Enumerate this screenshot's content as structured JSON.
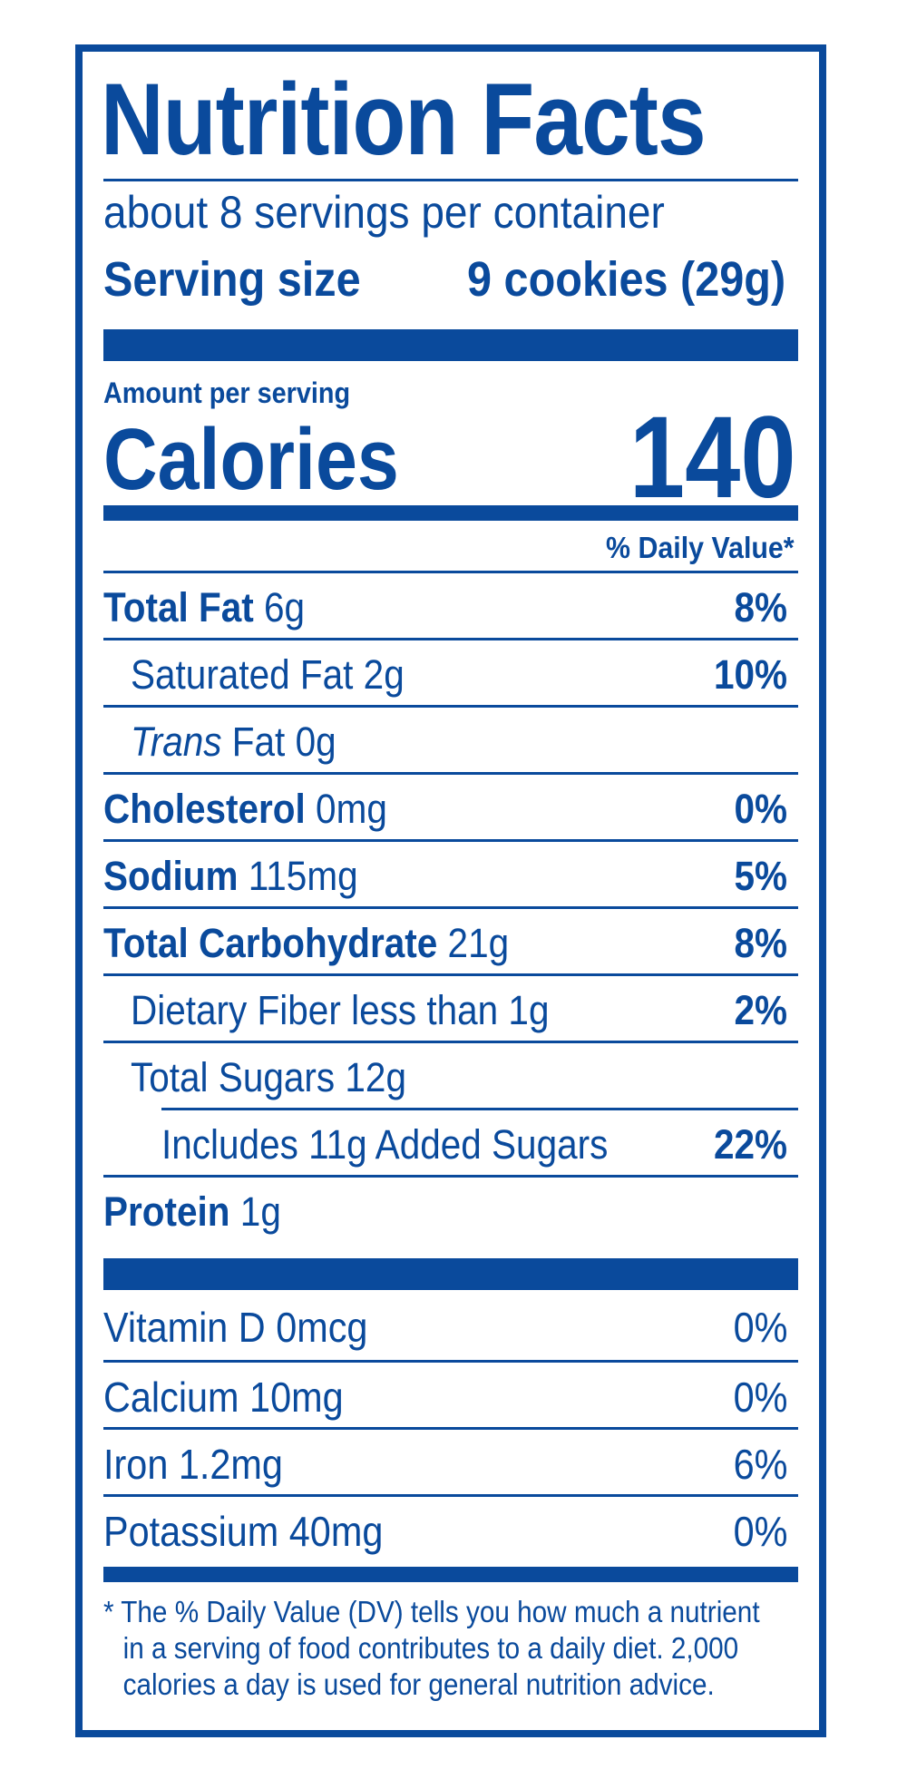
{
  "label": {
    "title": "Nutrition Facts",
    "servings_per_container": "about 8 servings per container",
    "serving_size_label": "Serving size",
    "serving_size_value": "9 cookies (29g)",
    "amount_per_serving": "Amount per serving",
    "calories_label": "Calories",
    "calories_value": "140",
    "daily_value_header": "% Daily Value*",
    "nutrients": [
      {
        "name": "Total Fat",
        "amount": "6g",
        "dv": "8%"
      },
      {
        "name": "Saturated Fat",
        "amount": "2g",
        "dv": "10%"
      },
      {
        "name_italic": "Trans",
        "name": "Fat",
        "amount": "0g",
        "dv": ""
      },
      {
        "name": "Cholesterol",
        "amount": "0mg",
        "dv": "0%"
      },
      {
        "name": "Sodium",
        "amount": "115mg",
        "dv": "5%"
      },
      {
        "name": "Total Carbohydrate",
        "amount": "21g",
        "dv": "8%"
      },
      {
        "name": "Dietary Fiber",
        "amount": "less than 1g",
        "dv": "2%"
      },
      {
        "name": "Total Sugars",
        "amount": "12g",
        "dv": ""
      },
      {
        "name": "Includes 11g Added Sugars",
        "amount": "",
        "dv": "22%"
      },
      {
        "name": "Protein",
        "amount": "1g",
        "dv": ""
      }
    ],
    "vitamins": [
      {
        "name": "Vitamin D",
        "amount": "0mcg",
        "dv": "0%"
      },
      {
        "name": "Calcium",
        "amount": "10mg",
        "dv": "0%"
      },
      {
        "name": "Iron",
        "amount": "1.2mg",
        "dv": "6%"
      },
      {
        "name": "Potassium",
        "amount": "40mg",
        "dv": "0%"
      }
    ],
    "footnote_lines": [
      "* The % Daily Value (DV) tells you how much a nutrient",
      "in a serving of food contributes to a daily diet. 2,000",
      "calories a day is used for general nutrition advice."
    ],
    "colors": {
      "ink": "#0a4a9c",
      "background": "#ffffff"
    }
  }
}
